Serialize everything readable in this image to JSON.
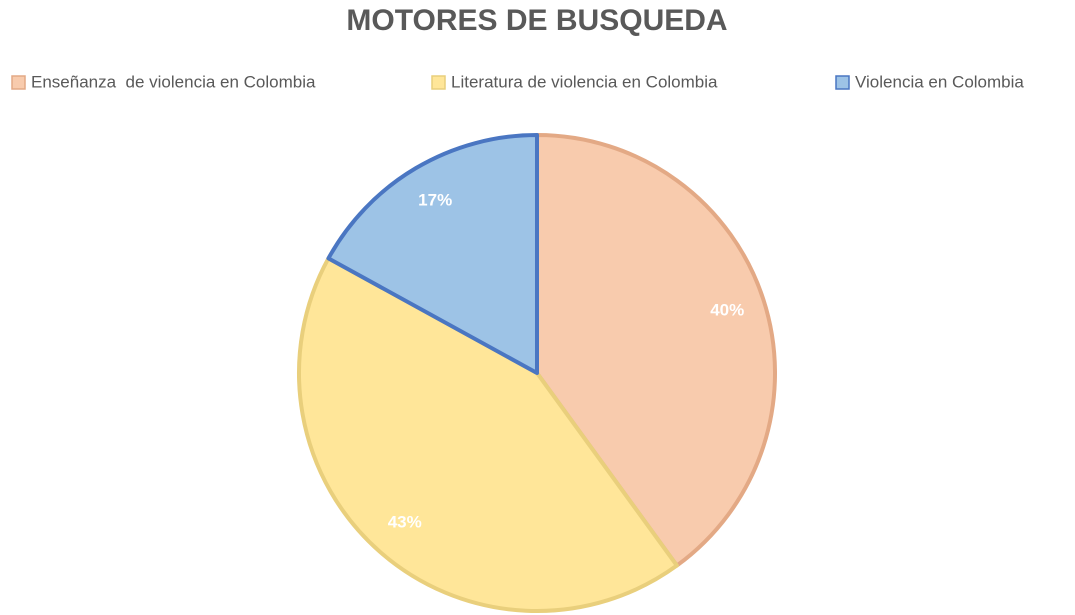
{
  "chart_data": {
    "type": "pie",
    "title": "MOTORES DE BUSQUEDA",
    "categories": [
      "Enseñanza  de violencia en Colombia",
      "Literatura de violencia en Colombia",
      "Violencia en Colombia"
    ],
    "values": [
      40,
      43,
      17
    ],
    "value_labels": [
      "40%",
      "43%",
      "17%"
    ],
    "colors": [
      "#f8cbad",
      "#ffe699",
      "#9dc3e6"
    ],
    "edge_colors": [
      "#e3a985",
      "#e9cf7c",
      "#4a76c2"
    ],
    "legend": "top"
  }
}
